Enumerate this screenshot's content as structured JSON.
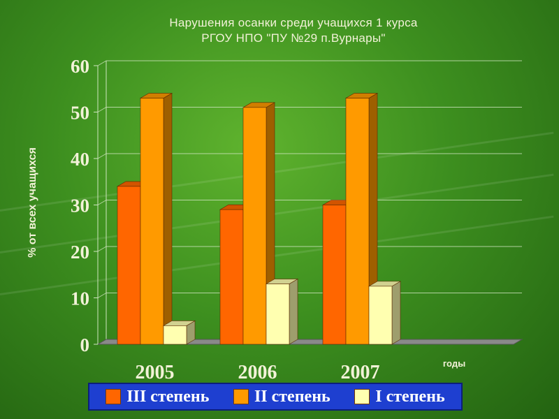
{
  "chart_data": {
    "type": "bar",
    "title_line1": "Нарушения осанки среди учащихся 1 курса",
    "title_line2": "РГОУ НПО \"ПУ №29 п.Вурнары\"",
    "ylabel": "% от всех учащихся",
    "xlabel": "годы",
    "categories": [
      "2005",
      "2006",
      "2007"
    ],
    "ylim": [
      0,
      60
    ],
    "yticks": [
      "0",
      "10",
      "20",
      "30",
      "40",
      "50",
      "60"
    ],
    "series": [
      {
        "name": "III степень",
        "values": [
          34,
          29,
          30
        ],
        "color": "#ff6600"
      },
      {
        "name": "II степень",
        "values": [
          53,
          51,
          53
        ],
        "color": "#ff9a00"
      },
      {
        "name": "I степень",
        "values": [
          4,
          13,
          12.5
        ],
        "color": "#ffffb0"
      }
    ],
    "grid": true,
    "legend_position": "bottom"
  },
  "colors": {
    "background": "#3d8f1f",
    "legend_bg": "#1e3fd0",
    "text": "#f2f2d8"
  }
}
